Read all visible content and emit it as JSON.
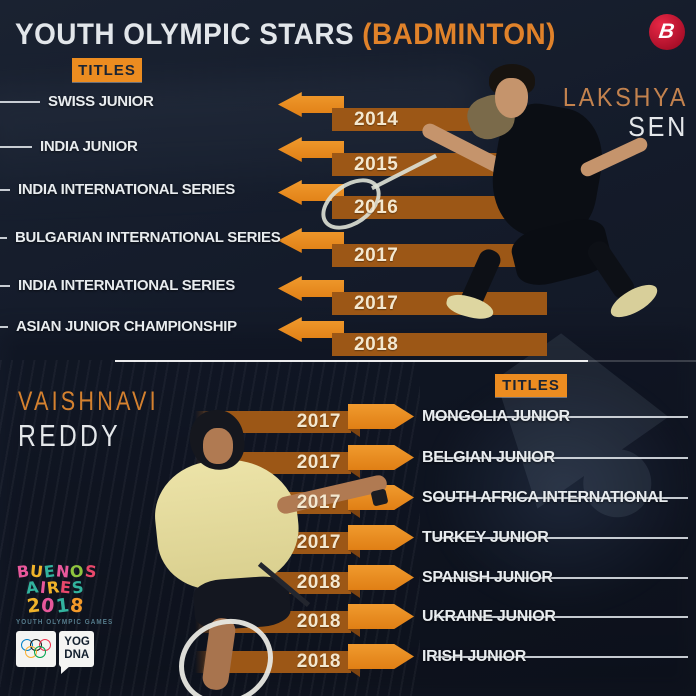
{
  "brand": {
    "logo_letter": "B"
  },
  "header": {
    "title_main": "YOUTH OLYMPIC STARS",
    "title_accent": "(BADMINTON)"
  },
  "colors": {
    "accent_orange": "#ec8c20",
    "year_bar_orange": "#9c5716",
    "year_text_cream": "#f4e8d0",
    "background_navy": "#141b2a",
    "text_light": "#e8ecef",
    "label_dark_navy": "#1b2433"
  },
  "top_section": {
    "titles_label": "TITLES",
    "player": {
      "first_name": "LAKSHYA",
      "last_name": "SEN"
    },
    "rows": [
      {
        "title": "SWISS JUNIOR",
        "year": "2014"
      },
      {
        "title": "INDIA JUNIOR",
        "year": "2015"
      },
      {
        "title": "INDIA INTERNATIONAL SERIES",
        "year": "2016"
      },
      {
        "title": "BULGARIAN INTERNATIONAL SERIES",
        "year": "2017"
      },
      {
        "title": "INDIA INTERNATIONAL SERIES",
        "year": "2017"
      },
      {
        "title": "ASIAN JUNIOR CHAMPIONSHIP",
        "year": "2018"
      }
    ]
  },
  "bottom_section": {
    "titles_label": "TITLES",
    "player": {
      "first_name": "VAISHNAVI",
      "last_name": "REDDY"
    },
    "rows": [
      {
        "year": "2017",
        "title": "MONGOLIA JUNIOR"
      },
      {
        "year": "2017",
        "title": "BELGIAN JUNIOR"
      },
      {
        "year": "2017",
        "title": "SOUTH AFRICA INTERNATIONAL"
      },
      {
        "year": "2017",
        "title": "TURKEY JUNIOR"
      },
      {
        "year": "2018",
        "title": "SPANISH JUNIOR"
      },
      {
        "year": "2018",
        "title": "UKRAINE JUNIOR"
      },
      {
        "year": "2018",
        "title": "IRISH JUNIOR"
      }
    ]
  },
  "footer_logo": {
    "line1_letters": [
      {
        "t": "B",
        "c": "#e8589b"
      },
      {
        "t": "U",
        "c": "#f0b32a"
      },
      {
        "t": "E",
        "c": "#32b39e"
      },
      {
        "t": "N",
        "c": "#e8589b"
      },
      {
        "t": "O",
        "c": "#8fc43f"
      },
      {
        "t": "S",
        "c": "#e8486b"
      }
    ],
    "line2_letters": [
      {
        "t": "A",
        "c": "#32b39e"
      },
      {
        "t": "I",
        "c": "#e8589b"
      },
      {
        "t": "R",
        "c": "#f0b32a"
      },
      {
        "t": "E",
        "c": "#e8486b"
      },
      {
        "t": "S",
        "c": "#32b39e"
      }
    ],
    "line3_letters": [
      {
        "t": "2",
        "c": "#f0b32a"
      },
      {
        "t": "0",
        "c": "#e8589b"
      },
      {
        "t": "1",
        "c": "#32b39e"
      },
      {
        "t": "8",
        "c": "#f49a2a"
      }
    ],
    "subtitle": "YOUTH OLYMPIC GAMES",
    "badge_yog_line1": "YOG",
    "badge_yog_line2": "DNA",
    "ring_colors": [
      "#0081c8",
      "#1b1b1b",
      "#ee334e",
      "#fcb131",
      "#00a651"
    ]
  }
}
